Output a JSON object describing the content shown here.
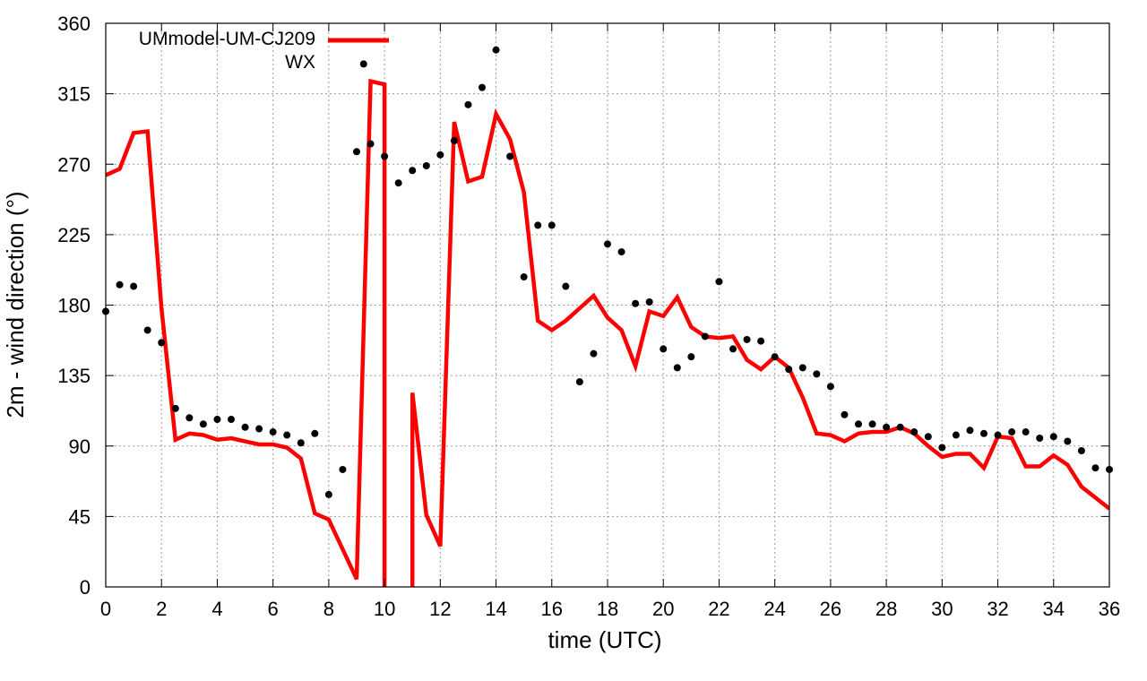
{
  "chart_data": {
    "type": "line",
    "title": "",
    "xlabel": "time (UTC)",
    "ylabel": "2m - wind direction (°)",
    "xlim": [
      0,
      36
    ],
    "ylim": [
      0,
      360
    ],
    "xticks": [
      "0",
      "2",
      "4",
      "6",
      "8",
      "10",
      "12",
      "14",
      "16",
      "18",
      "20",
      "22",
      "24",
      "26",
      "28",
      "30",
      "32",
      "34",
      "36"
    ],
    "yticks": [
      "0",
      "45",
      "90",
      "135",
      "180",
      "225",
      "270",
      "315",
      "360"
    ],
    "grid": true,
    "legend_position": "top-left",
    "series": [
      {
        "name": "UMmodel-UM-CJ209",
        "style": "line",
        "color": "#ff0000",
        "points": [
          [
            0,
            263
          ],
          [
            0.5,
            267
          ],
          [
            1,
            290
          ],
          [
            1.5,
            291
          ],
          [
            2,
            178
          ],
          [
            2.5,
            94
          ],
          [
            3,
            98
          ],
          [
            3.5,
            97
          ],
          [
            4,
            94
          ],
          [
            4.5,
            95
          ],
          [
            5,
            93
          ],
          [
            5.5,
            91
          ],
          [
            6,
            91
          ],
          [
            6.5,
            89
          ],
          [
            7,
            82
          ],
          [
            7.5,
            47
          ],
          [
            8,
            43
          ],
          [
            8.5,
            24
          ],
          [
            9,
            5
          ],
          [
            9.5,
            323
          ],
          [
            10,
            321
          ],
          [
            10,
            0
          ],
          null,
          [
            11,
            0
          ],
          [
            11,
            124
          ],
          [
            11.5,
            46
          ],
          [
            12,
            26
          ],
          [
            12.5,
            297
          ],
          [
            13,
            259
          ],
          [
            13.5,
            262
          ],
          [
            14,
            302
          ],
          [
            14.5,
            286
          ],
          [
            15,
            252
          ],
          [
            15.5,
            170
          ],
          [
            16,
            164
          ],
          [
            16.5,
            170
          ],
          [
            17,
            178
          ],
          [
            17.5,
            186
          ],
          [
            18,
            172
          ],
          [
            18.5,
            164
          ],
          [
            19,
            141
          ],
          [
            19.5,
            176
          ],
          [
            20,
            173
          ],
          [
            20.5,
            185
          ],
          [
            21,
            166
          ],
          [
            21.5,
            160
          ],
          [
            22,
            159
          ],
          [
            22.5,
            160
          ],
          [
            23,
            145
          ],
          [
            23.5,
            139
          ],
          [
            24,
            147
          ],
          [
            24.5,
            140
          ],
          [
            25,
            121
          ],
          [
            25.5,
            98
          ],
          [
            26,
            97
          ],
          [
            26.5,
            93
          ],
          [
            27,
            98
          ],
          [
            27.5,
            99
          ],
          [
            28,
            99
          ],
          [
            28.5,
            102
          ],
          [
            29,
            98
          ],
          [
            29.5,
            90
          ],
          [
            30,
            83
          ],
          [
            30.5,
            85
          ],
          [
            31,
            85
          ],
          [
            31.5,
            76
          ],
          [
            32,
            96
          ],
          [
            32.5,
            95
          ],
          [
            33,
            77
          ],
          [
            33.5,
            77
          ],
          [
            34,
            84
          ],
          [
            34.5,
            78
          ],
          [
            35,
            64
          ],
          [
            35.5,
            57
          ],
          [
            36,
            50
          ]
        ]
      },
      {
        "name": "WX",
        "style": "points",
        "color": "#000000",
        "points": [
          [
            0,
            176
          ],
          [
            0.5,
            193
          ],
          [
            1,
            192
          ],
          [
            1.5,
            164
          ],
          [
            2,
            156
          ],
          [
            2.5,
            114
          ],
          [
            3,
            108
          ],
          [
            3.5,
            104
          ],
          [
            4,
            107
          ],
          [
            4.5,
            107
          ],
          [
            5,
            102
          ],
          [
            5.5,
            101
          ],
          [
            6,
            99
          ],
          [
            6.5,
            97
          ],
          [
            7,
            92
          ],
          [
            7.5,
            98
          ],
          [
            8,
            59
          ],
          [
            8.5,
            75
          ],
          [
            9,
            278
          ],
          [
            9.25,
            334
          ],
          [
            9.5,
            283
          ],
          [
            10,
            275
          ],
          [
            10.5,
            258
          ],
          [
            11,
            266
          ],
          [
            11.5,
            269
          ],
          [
            12,
            276
          ],
          [
            12.5,
            285
          ],
          [
            13,
            308
          ],
          [
            13.5,
            319
          ],
          [
            14,
            343
          ],
          [
            14.5,
            275
          ],
          [
            15,
            198
          ],
          [
            15.5,
            231
          ],
          [
            16,
            231
          ],
          [
            16.5,
            192
          ],
          [
            17,
            131
          ],
          [
            17.5,
            149
          ],
          [
            18,
            219
          ],
          [
            18.5,
            214
          ],
          [
            19,
            181
          ],
          [
            19.5,
            182
          ],
          [
            20,
            152
          ],
          [
            20.5,
            140
          ],
          [
            21,
            147
          ],
          [
            21.5,
            160
          ],
          [
            22,
            195
          ],
          [
            22.5,
            152
          ],
          [
            23,
            158
          ],
          [
            23.5,
            157
          ],
          [
            24,
            147
          ],
          [
            24.5,
            139
          ],
          [
            25,
            140
          ],
          [
            25.5,
            136
          ],
          [
            26,
            128
          ],
          [
            26.5,
            110
          ],
          [
            27,
            104
          ],
          [
            27.5,
            104
          ],
          [
            28,
            102
          ],
          [
            28.5,
            102
          ],
          [
            29,
            99
          ],
          [
            29.5,
            96
          ],
          [
            30,
            89
          ],
          [
            30.5,
            97
          ],
          [
            31,
            100
          ],
          [
            31.5,
            98
          ],
          [
            32,
            97
          ],
          [
            32.5,
            99
          ],
          [
            33,
            99
          ],
          [
            33.5,
            95
          ],
          [
            34,
            96
          ],
          [
            34.5,
            93
          ],
          [
            35,
            87
          ],
          [
            35.5,
            76
          ],
          [
            36,
            75
          ]
        ]
      }
    ]
  }
}
